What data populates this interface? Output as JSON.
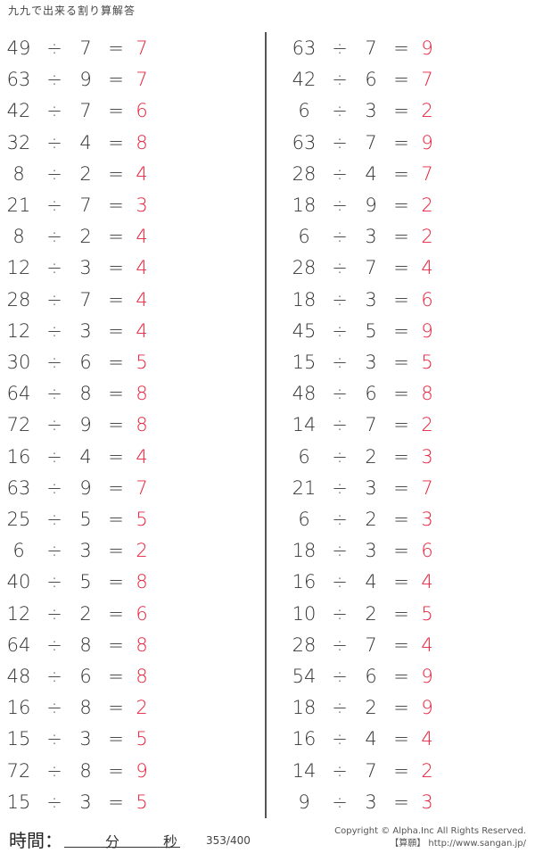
{
  "title": "九九で出来る割り算解答",
  "operator": "÷",
  "equals": "=",
  "left": [
    [
      "49",
      "7",
      "7"
    ],
    [
      "63",
      "9",
      "7"
    ],
    [
      "42",
      "7",
      "6"
    ],
    [
      "32",
      "4",
      "8"
    ],
    [
      "8",
      "2",
      "4"
    ],
    [
      "21",
      "7",
      "3"
    ],
    [
      "8",
      "2",
      "4"
    ],
    [
      "12",
      "3",
      "4"
    ],
    [
      "28",
      "7",
      "4"
    ],
    [
      "12",
      "3",
      "4"
    ],
    [
      "30",
      "6",
      "5"
    ],
    [
      "64",
      "8",
      "8"
    ],
    [
      "72",
      "9",
      "8"
    ],
    [
      "16",
      "4",
      "4"
    ],
    [
      "63",
      "9",
      "7"
    ],
    [
      "25",
      "5",
      "5"
    ],
    [
      "6",
      "3",
      "2"
    ],
    [
      "40",
      "5",
      "8"
    ],
    [
      "12",
      "2",
      "6"
    ],
    [
      "64",
      "8",
      "8"
    ],
    [
      "48",
      "6",
      "8"
    ],
    [
      "16",
      "8",
      "2"
    ],
    [
      "15",
      "3",
      "5"
    ],
    [
      "72",
      "8",
      "9"
    ],
    [
      "15",
      "3",
      "5"
    ]
  ],
  "right": [
    [
      "63",
      "7",
      "9"
    ],
    [
      "42",
      "6",
      "7"
    ],
    [
      "6",
      "3",
      "2"
    ],
    [
      "63",
      "7",
      "9"
    ],
    [
      "28",
      "4",
      "7"
    ],
    [
      "18",
      "9",
      "2"
    ],
    [
      "6",
      "3",
      "2"
    ],
    [
      "28",
      "7",
      "4"
    ],
    [
      "18",
      "3",
      "6"
    ],
    [
      "45",
      "5",
      "9"
    ],
    [
      "15",
      "3",
      "5"
    ],
    [
      "48",
      "6",
      "8"
    ],
    [
      "14",
      "7",
      "2"
    ],
    [
      "6",
      "2",
      "3"
    ],
    [
      "21",
      "3",
      "7"
    ],
    [
      "6",
      "2",
      "3"
    ],
    [
      "18",
      "3",
      "6"
    ],
    [
      "16",
      "4",
      "4"
    ],
    [
      "10",
      "2",
      "5"
    ],
    [
      "28",
      "7",
      "4"
    ],
    [
      "54",
      "6",
      "9"
    ],
    [
      "18",
      "2",
      "9"
    ],
    [
      "16",
      "4",
      "4"
    ],
    [
      "14",
      "7",
      "2"
    ],
    [
      "9",
      "3",
      "3"
    ]
  ],
  "footer": {
    "time_label": "時間：",
    "minutes": "分",
    "seconds": "秒",
    "page_count": "353/400",
    "copyright": "Copyright © Alpha.Inc All Rights Reserved.",
    "site": "【算願】 http://www.sangan.jp/"
  },
  "colors": {
    "answer": "#e8203a",
    "text": "#333333"
  }
}
